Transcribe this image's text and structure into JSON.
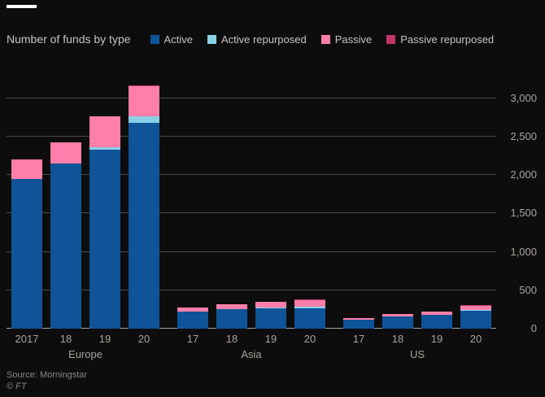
{
  "header": {
    "title": "Number of funds by type"
  },
  "legend": [
    {
      "label": "Active",
      "color": "#0f5499"
    },
    {
      "label": "Active repurposed",
      "color": "#8ad1e8"
    },
    {
      "label": "Passive",
      "color": "#ff7faa"
    },
    {
      "label": "Passive repurposed",
      "color": "#c1366b"
    }
  ],
  "chart_data": {
    "type": "bar",
    "stacked": true,
    "title": "Number of funds by type",
    "xlabel": "",
    "ylabel": "",
    "ylim": [
      0,
      3370
    ],
    "yticks": [
      0,
      500,
      1000,
      1500,
      2000,
      2500,
      3000
    ],
    "ytick_labels": [
      "0",
      "500",
      "1,000",
      "1,500",
      "2,000",
      "2,500",
      "3,000"
    ],
    "legend_position": "top",
    "grid": true,
    "groups": [
      {
        "label": "Europe",
        "categories": [
          "2017",
          "18",
          "19",
          "20"
        ]
      },
      {
        "label": "Asia",
        "categories": [
          "17",
          "18",
          "19",
          "20"
        ]
      },
      {
        "label": "US",
        "categories": [
          "17",
          "18",
          "19",
          "20"
        ]
      }
    ],
    "series": [
      {
        "name": "Active",
        "color": "#0f5499",
        "values": [
          [
            1950,
            2150,
            2330,
            2680
          ],
          [
            220,
            250,
            260,
            270
          ],
          [
            120,
            160,
            185,
            230
          ]
        ]
      },
      {
        "name": "Active repurposed",
        "color": "#8ad1e8",
        "values": [
          [
            0,
            0,
            30,
            90
          ],
          [
            0,
            0,
            10,
            20
          ],
          [
            0,
            0,
            0,
            10
          ]
        ]
      },
      {
        "name": "Passive",
        "color": "#ff7faa",
        "values": [
          [
            250,
            280,
            400,
            390
          ],
          [
            50,
            60,
            70,
            90
          ],
          [
            25,
            35,
            45,
            50
          ]
        ]
      },
      {
        "name": "Passive repurposed",
        "color": "#c1366b",
        "values": [
          [
            0,
            0,
            0,
            10
          ],
          [
            0,
            0,
            0,
            10
          ],
          [
            0,
            0,
            0,
            10
          ]
        ]
      }
    ]
  },
  "footer": {
    "source": "Source: Morningstar",
    "copyright": "© FT"
  }
}
